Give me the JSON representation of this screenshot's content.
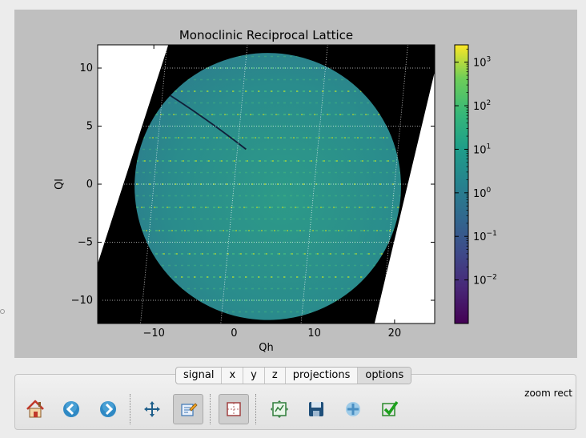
{
  "chart_data": {
    "type": "heatmap",
    "title": "Monoclinic Reciprocal Lattice",
    "xlabel": "Qh",
    "ylabel": "Ql",
    "xlim": [
      -17,
      25
    ],
    "ylim": [
      -12,
      12
    ],
    "xticks": [
      -10,
      0,
      10,
      20
    ],
    "xtick_labels": [
      "−10",
      "0",
      "10",
      "20"
    ],
    "yticks": [
      10,
      5,
      0,
      -5,
      -10
    ],
    "ytick_labels": [
      "10",
      "5",
      "0",
      "−5",
      "−10"
    ],
    "grid": true,
    "colorbar": {
      "scale": "log",
      "colormap": "viridis",
      "range": [
        0.001,
        2500
      ],
      "tick_values": [
        1000,
        100,
        10,
        1,
        0.1,
        0.01
      ],
      "tick_labels": [
        "10^3",
        "10^2",
        "10^1",
        "10^0",
        "10^-1",
        "10^-2"
      ]
    },
    "background_color": "#000000",
    "masked_color": "#ffffff"
  },
  "tabs": [
    {
      "label": "signal"
    },
    {
      "label": "x"
    },
    {
      "label": "y"
    },
    {
      "label": "z"
    },
    {
      "label": "projections"
    },
    {
      "label": "options"
    }
  ],
  "toolbar": {
    "mode_label": "zoom rect",
    "buttons": [
      {
        "name": "home",
        "icon": "home-icon"
      },
      {
        "name": "back",
        "icon": "arrow-left-icon"
      },
      {
        "name": "forward",
        "icon": "arrow-right-icon"
      },
      {
        "name": "pan",
        "icon": "move-icon"
      },
      {
        "name": "edit",
        "icon": "edit-icon"
      },
      {
        "name": "zoom",
        "icon": "zoom-rect-icon"
      },
      {
        "name": "configure",
        "icon": "configure-subplots-icon"
      },
      {
        "name": "save",
        "icon": "save-icon"
      },
      {
        "name": "add",
        "icon": "plus-icon"
      },
      {
        "name": "confirm",
        "icon": "checkmark-icon"
      }
    ]
  },
  "colors": {
    "figure_bg": "#bfbfbf",
    "data_teal": "#2a8e8b",
    "peak_yellow": "#d8e219"
  }
}
